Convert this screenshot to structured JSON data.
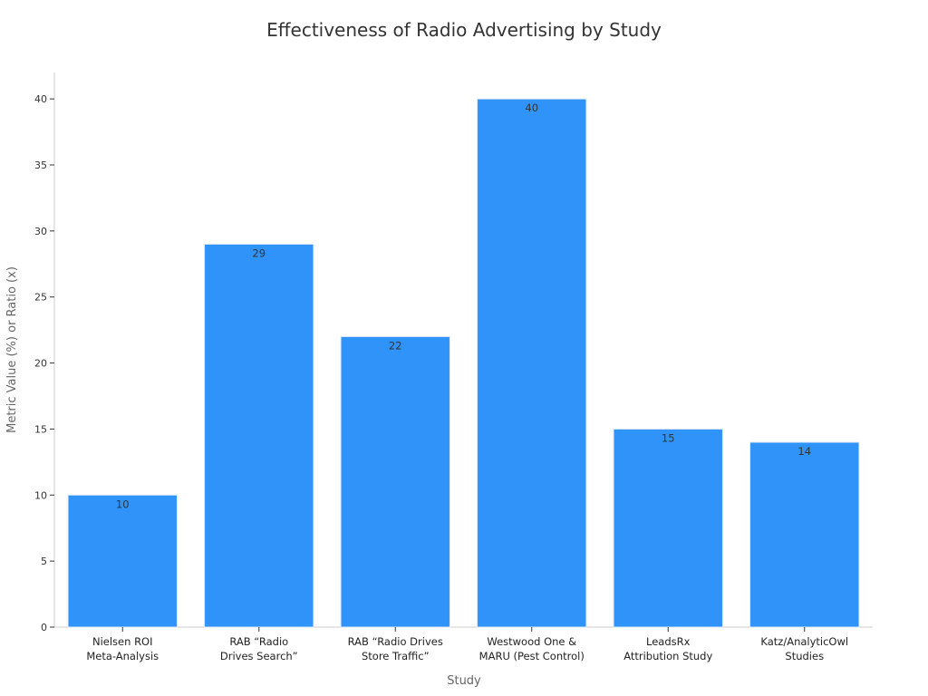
{
  "chart_data": {
    "type": "bar",
    "title": "Effectiveness of Radio Advertising by Study",
    "xlabel": "Study",
    "ylabel": "Metric Value (%) or Ratio (x)",
    "categories": [
      [
        "Nielsen ROI",
        "Meta-Analysis"
      ],
      [
        "RAB “Radio",
        "Drives Search”"
      ],
      [
        "RAB “Radio Drives",
        "Store Traffic”"
      ],
      [
        "Westwood One &",
        "MARU (Pest Control)"
      ],
      [
        "LeadsRx",
        "Attribution Study"
      ],
      [
        "Katz/AnalyticOwl",
        "Studies"
      ]
    ],
    "values": [
      10,
      29,
      22,
      40,
      15,
      14
    ],
    "data_labels": [
      "10",
      "29",
      "22",
      "40",
      "15",
      "14"
    ],
    "yticks": [
      0,
      5,
      10,
      15,
      20,
      25,
      30,
      35,
      40
    ],
    "ylim": [
      0,
      42
    ],
    "grid": false,
    "bar_color": "#2f93f9"
  }
}
